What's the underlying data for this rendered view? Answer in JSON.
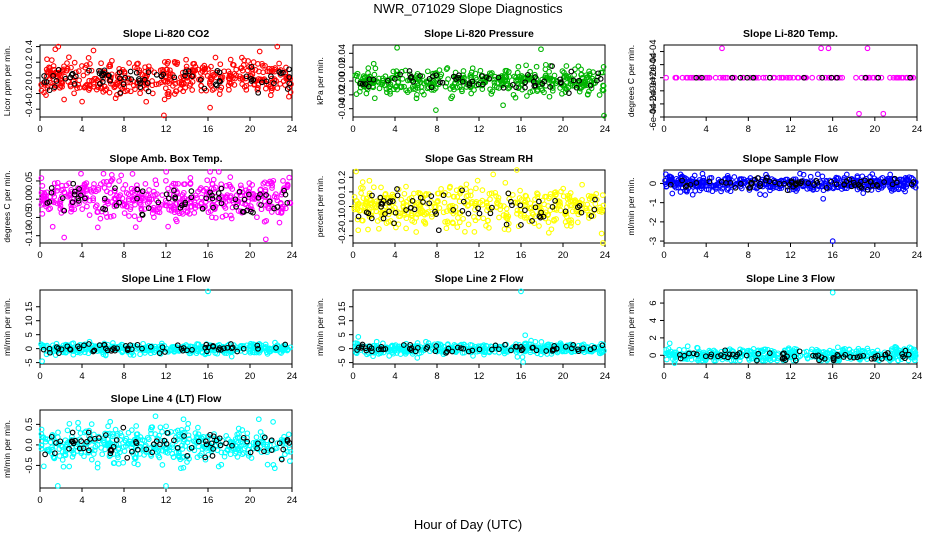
{
  "title": "NWR_071029  Slope Diagnostics",
  "xlabel": "Hour of Day (UTC)",
  "chart_data": [
    {
      "type": "scatter",
      "title": "Slope Li-820 CO2",
      "ylabel": "Licor ppm per min.",
      "color": "#ff0000",
      "xlim": [
        0,
        24
      ],
      "ylim": [
        -0.5,
        0.42
      ],
      "xticks": [
        0,
        4,
        8,
        12,
        16,
        20,
        24
      ],
      "yticks": [
        -0.4,
        -0.2,
        0.0,
        0.2,
        0.4
      ],
      "ytick_labels": [
        "-0.4",
        "-0.2",
        "0.0",
        "0.2",
        "0.4"
      ],
      "spread": 0.12,
      "clip": [
        -0.4,
        0.4
      ],
      "count": 430,
      "black_count": 75,
      "seed": 11,
      "outliers": [
        [
          11.8,
          -0.48
        ],
        [
          5.1,
          0.35
        ],
        [
          16.2,
          -0.38
        ],
        [
          22.6,
          0.4
        ]
      ]
    },
    {
      "type": "scatter",
      "title": "Slope Li-820 Pressure",
      "ylabel": "kPa per min.",
      "color": "#00b400",
      "xlim": [
        0,
        24
      ],
      "ylim": [
        -0.052,
        0.052
      ],
      "xticks": [
        0,
        4,
        8,
        12,
        16,
        20,
        24
      ],
      "yticks": [
        -0.04,
        -0.02,
        0.0,
        0.02,
        0.04
      ],
      "ytick_labels": [
        "-0.04",
        "-0.02",
        "0.00",
        "0.02",
        "0.04"
      ],
      "spread": 0.009,
      "clip": [
        -0.025,
        0.025
      ],
      "count": 420,
      "black_count": 60,
      "seed": 23,
      "outliers": [
        [
          4.2,
          0.048
        ],
        [
          7.9,
          -0.042
        ],
        [
          14.3,
          -0.035
        ],
        [
          17.9,
          0.046
        ],
        [
          23.9,
          -0.05
        ]
      ]
    },
    {
      "type": "scatter",
      "title": "Slope Li-820 Temp.",
      "ylabel": "degrees C per min.",
      "color": "#ff00ff",
      "xlim": [
        0,
        24
      ],
      "ylim": [
        -0.0006,
        0.0005
      ],
      "xticks": [
        0,
        4,
        8,
        12,
        16,
        20,
        24
      ],
      "yticks": [
        -0.0006,
        -0.0004,
        -0.0002,
        0.0,
        0.0002,
        0.0004
      ],
      "ytick_labels": [
        "-6e-04",
        "-4e-04",
        "-2e-04",
        "0e+00",
        "2e-04",
        "4e-04"
      ],
      "spread": 0,
      "clip": [
        -0.001,
        0.001
      ],
      "count": 90,
      "black_count": 15,
      "seed": 31,
      "constant": 0.0,
      "outliers": [
        [
          5.5,
          0.00045
        ],
        [
          14.9,
          0.00045
        ],
        [
          15.6,
          0.00045
        ],
        [
          19.3,
          0.00045
        ],
        [
          18.5,
          -0.00055
        ],
        [
          20.8,
          -0.00055
        ],
        [
          0.2,
          0.0
        ]
      ]
    },
    {
      "type": "scatter",
      "title": "Slope Amb. Box Temp.",
      "ylabel": "degrees C per min.",
      "color": "#ff00ff",
      "xlim": [
        0,
        24
      ],
      "ylim": [
        -0.12,
        0.08
      ],
      "xticks": [
        0,
        4,
        8,
        12,
        16,
        20,
        24
      ],
      "yticks": [
        -0.1,
        -0.05,
        0.0,
        0.05
      ],
      "ytick_labels": [
        "-0.10",
        "-0.05",
        "0.00",
        "0.05"
      ],
      "spread": 0.028,
      "clip": [
        -0.11,
        0.075
      ],
      "count": 460,
      "black_count": 70,
      "seed": 47,
      "outliers": [
        [
          3.9,
          0.07
        ],
        [
          16.2,
          0.075
        ],
        [
          2.3,
          -0.105
        ],
        [
          21.5,
          -0.11
        ]
      ]
    },
    {
      "type": "scatter",
      "title": "Slope Gas Stream RH",
      "ylabel": "percent per min.",
      "color": "#ffff00",
      "xlim": [
        0,
        24
      ],
      "ylim": [
        -0.25,
        0.25
      ],
      "xticks": [
        0,
        4,
        8,
        12,
        16,
        20,
        24
      ],
      "yticks": [
        -0.2,
        -0.1,
        0.0,
        0.1,
        0.2
      ],
      "ytick_labels": [
        "-0.2",
        "-0.1",
        "0.0",
        "0.1",
        "0.2"
      ],
      "spread": 0.07,
      "clip": [
        -0.22,
        0.22
      ],
      "count": 440,
      "black_count": 65,
      "seed": 59,
      "outliers": [
        [
          0.3,
          0.24
        ],
        [
          15.6,
          0.25
        ],
        [
          23.8,
          -0.25
        ]
      ]
    },
    {
      "type": "scatter",
      "title": "Slope Sample Flow",
      "ylabel": "ml/min per min.",
      "color": "#0000ff",
      "xlim": [
        0,
        24
      ],
      "ylim": [
        -3.1,
        0.7
      ],
      "xticks": [
        0,
        4,
        8,
        12,
        16,
        20,
        24
      ],
      "yticks": [
        -3,
        -2,
        -1,
        0
      ],
      "ytick_labels": [
        "-3",
        "-2",
        "-1",
        "0"
      ],
      "spread": 0.18,
      "clip": [
        -0.9,
        0.6
      ],
      "count": 460,
      "black_count": 70,
      "seed": 67,
      "outliers": [
        [
          16.0,
          -3.0
        ],
        [
          15.1,
          -0.8
        ],
        [
          9.6,
          -0.6
        ],
        [
          18.9,
          -0.5
        ]
      ]
    },
    {
      "type": "scatter",
      "title": "Slope Line 1 Flow",
      "ylabel": "ml/min per min.",
      "color": "#00ffff",
      "xlim": [
        0,
        24
      ],
      "ylim": [
        -5.5,
        21
      ],
      "xticks": [
        0,
        4,
        8,
        12,
        16,
        20,
        24
      ],
      "yticks": [
        -5,
        0,
        5,
        10,
        15
      ],
      "ytick_labels": [
        "-5",
        "0",
        "5",
        "10",
        "15"
      ],
      "spread": 0.9,
      "clip": [
        -3,
        2.5
      ],
      "count": 430,
      "black_count": 65,
      "seed": 71,
      "outliers": [
        [
          16.0,
          20.5
        ],
        [
          0.2,
          -4.5
        ]
      ]
    },
    {
      "type": "scatter",
      "title": "Slope Line 2 Flow",
      "ylabel": "ml/min per min.",
      "color": "#00ffff",
      "xlim": [
        0,
        24
      ],
      "ylim": [
        -5.5,
        21
      ],
      "xticks": [
        0,
        4,
        8,
        12,
        16,
        20,
        24
      ],
      "yticks": [
        -5,
        0,
        5,
        10,
        15
      ],
      "ytick_labels": [
        "-5",
        "0",
        "5",
        "10",
        "15"
      ],
      "spread": 1.0,
      "clip": [
        -3.5,
        3
      ],
      "count": 430,
      "black_count": 65,
      "seed": 83,
      "outliers": [
        [
          16.0,
          20.5
        ],
        [
          16.4,
          4.8
        ],
        [
          0.5,
          4.2
        ],
        [
          16.2,
          -4.8
        ]
      ]
    },
    {
      "type": "scatter",
      "title": "Slope Line 3 Flow",
      "ylabel": "ml/min per min.",
      "color": "#00ffff",
      "xlim": [
        0,
        24
      ],
      "ylim": [
        -1,
        7.5
      ],
      "xticks": [
        0,
        4,
        8,
        12,
        16,
        20,
        24
      ],
      "yticks": [
        0,
        2,
        4,
        6
      ],
      "ytick_labels": [
        "0",
        "2",
        "4",
        "6"
      ],
      "spread": 0.45,
      "clip": [
        -0.6,
        1.6
      ],
      "count": 430,
      "black_count": 65,
      "seed": 97,
      "outliers": [
        [
          16.0,
          7.2
        ],
        [
          1.0,
          -0.9
        ]
      ]
    },
    {
      "type": "scatter",
      "title": "Slope Line 4 (LT) Flow",
      "ylabel": "ml/min per min.",
      "color": "#00ffff",
      "xlim": [
        0,
        24
      ],
      "ylim": [
        -1.05,
        0.85
      ],
      "xticks": [
        0,
        4,
        8,
        12,
        16,
        20,
        24
      ],
      "yticks": [
        -0.5,
        0.0,
        0.5
      ],
      "ytick_labels": [
        "-0.5",
        "0.0",
        "0.5"
      ],
      "spread": 0.22,
      "clip": [
        -0.65,
        0.65
      ],
      "count": 440,
      "black_count": 75,
      "seed": 101,
      "outliers": [
        [
          1.7,
          -1.0
        ],
        [
          12.0,
          -1.0
        ],
        [
          11.0,
          0.7
        ]
      ]
    }
  ]
}
